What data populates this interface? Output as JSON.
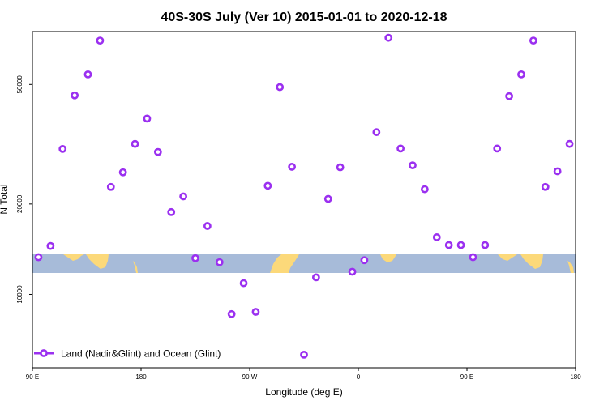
{
  "chart_data": {
    "type": "scatter",
    "title": "40S-30S July (Ver 10)   2015-01-01 to 2020-12-18",
    "xlabel": "Longitude (deg E)",
    "ylabel": "N Total",
    "y_scale": "log",
    "xlim": [
      90,
      540
    ],
    "ylim": [
      5700,
      75000
    ],
    "x_ticks": [
      {
        "value": 90,
        "label": "90 E"
      },
      {
        "value": 180,
        "label": "180"
      },
      {
        "value": 270,
        "label": "90 W"
      },
      {
        "value": 360,
        "label": "0"
      },
      {
        "value": 450,
        "label": "90 E"
      },
      {
        "value": 540,
        "label": "180"
      }
    ],
    "y_ticks": [
      {
        "value": 10000,
        "label": "10000"
      },
      {
        "value": 20000,
        "label": "20000"
      },
      {
        "value": 50000,
        "label": "50000"
      }
    ],
    "grid": false,
    "legend_position": "bottom-left",
    "series": [
      {
        "name": "Land (Nadir&Glint) and Ocean (Glint)",
        "color": "#9b30f0",
        "marker": "open-circle",
        "x": [
          95,
          105,
          115,
          125,
          136,
          146,
          155,
          165,
          175,
          185,
          194,
          205,
          215,
          225,
          235,
          245,
          255,
          265,
          275,
          285,
          295,
          305,
          315,
          325,
          335,
          345,
          355,
          365,
          375,
          385,
          395,
          405,
          415,
          425,
          435,
          445,
          455,
          465,
          475,
          485,
          495,
          505,
          515,
          525,
          535
        ],
        "y": [
          13300,
          14500,
          30500,
          46000,
          54000,
          70000,
          22800,
          25500,
          31700,
          38500,
          29800,
          18800,
          21200,
          13200,
          16900,
          12800,
          8600,
          10900,
          8750,
          23000,
          49000,
          26600,
          6300,
          11400,
          20800,
          26500,
          11900,
          13000,
          34700,
          71500,
          30600,
          26900,
          22400,
          15500,
          14600,
          14600,
          13300,
          14600,
          30600,
          45700,
          54000,
          70000,
          22800,
          25700,
          31700
        ]
      }
    ],
    "colors": {
      "marker": "#9b30f0",
      "ocean": "#a7bbd9",
      "land": "#fcd97a"
    }
  }
}
